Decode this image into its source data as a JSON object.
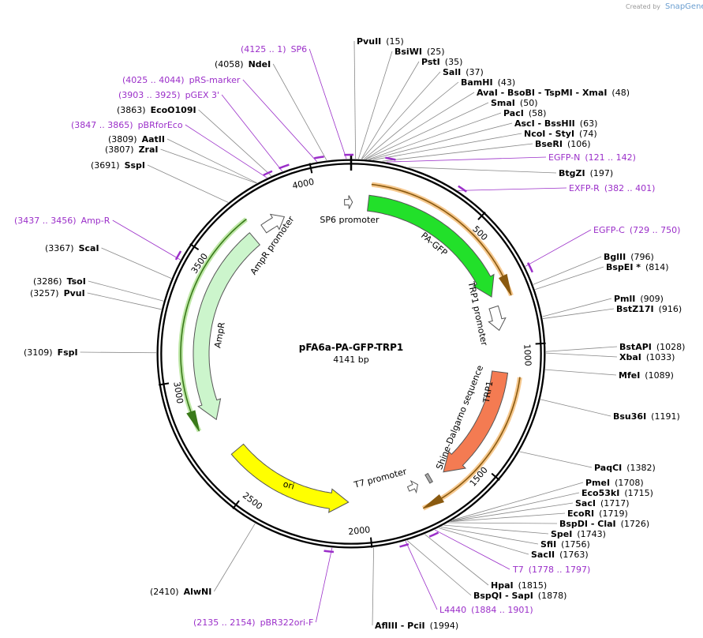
{
  "watermark": {
    "prefix": "Created by",
    "brand": "SnapGene"
  },
  "map": {
    "name": "pFA6a-PA-GFP-TRP1",
    "length": "4141 bp"
  },
  "enzymes": [
    {
      "name": "PvuII",
      "site": "(15)"
    },
    {
      "name": "BsiWI",
      "site": "(25)"
    },
    {
      "name": "PstI",
      "site": "(35)"
    },
    {
      "name": "SalI",
      "site": "(37)"
    },
    {
      "name": "BamHI",
      "site": "(43)"
    },
    {
      "name": "AvaI - BsoBI - TspMI - XmaI",
      "site": "(48)"
    },
    {
      "name": "SmaI",
      "site": "(50)"
    },
    {
      "name": "PacI",
      "site": "(58)"
    },
    {
      "name": "AscI - BssHII",
      "site": "(63)"
    },
    {
      "name": "NcoI - StyI",
      "site": "(74)"
    },
    {
      "name": "BseRI",
      "site": "(106)"
    },
    {
      "name": "BtgZI",
      "site": "(197)"
    },
    {
      "name": "BglII",
      "site": "(796)"
    },
    {
      "name": "BspEI *",
      "site": "(814)"
    },
    {
      "name": "PmlI",
      "site": "(909)"
    },
    {
      "name": "BstZ17I",
      "site": "(916)"
    },
    {
      "name": "BstAPI",
      "site": "(1028)"
    },
    {
      "name": "XbaI",
      "site": "(1033)"
    },
    {
      "name": "MfeI",
      "site": "(1089)"
    },
    {
      "name": "Bsu36I",
      "site": "(1191)"
    },
    {
      "name": "PaqCI",
      "site": "(1382)"
    },
    {
      "name": "PmeI",
      "site": "(1708)"
    },
    {
      "name": "Eco53kI",
      "site": "(1715)"
    },
    {
      "name": "SacI",
      "site": "(1717)"
    },
    {
      "name": "EcoRI",
      "site": "(1719)"
    },
    {
      "name": "BspDI - ClaI",
      "site": "(1726)"
    },
    {
      "name": "SpeI",
      "site": "(1743)"
    },
    {
      "name": "SfiI",
      "site": "(1756)"
    },
    {
      "name": "SacII",
      "site": "(1763)"
    },
    {
      "name": "HpaI",
      "site": "(1815)"
    },
    {
      "name": "BspQI - SapI",
      "site": "(1878)"
    },
    {
      "name": "AflIII - PciI",
      "site": "(1994)"
    },
    {
      "name": "AlwNI",
      "site": "(2410)"
    },
    {
      "name": "FspI",
      "site": "(3109)"
    },
    {
      "name": "PvuI",
      "site": "(3257)"
    },
    {
      "name": "TsoI",
      "site": "(3286)"
    },
    {
      "name": "ScaI",
      "site": "(3367)"
    },
    {
      "name": "SspI",
      "site": "(3691)"
    },
    {
      "name": "ZraI",
      "site": "(3807)"
    },
    {
      "name": "AatII",
      "site": "(3809)"
    },
    {
      "name": "EcoO109I",
      "site": "(3863)"
    },
    {
      "name": "NdeI",
      "site": "(4058)"
    }
  ],
  "primers": [
    {
      "name": "SP6",
      "range": "(4125 .. 1)"
    },
    {
      "name": "pRS-marker",
      "range": "(4025 .. 4044)"
    },
    {
      "name": "pGEX 3'",
      "range": "(3903 .. 3925)"
    },
    {
      "name": "pBRforEco",
      "range": "(3847 .. 3865)"
    },
    {
      "name": "EGFP-N",
      "range": "(121 .. 142)"
    },
    {
      "name": "EXFP-R",
      "range": "(382 .. 401)"
    },
    {
      "name": "EGFP-C",
      "range": "(729 .. 750)"
    },
    {
      "name": "Amp-R",
      "range": "(3437 .. 3456)"
    },
    {
      "name": "T7",
      "range": "(1778 .. 1797)"
    },
    {
      "name": "L4440",
      "range": "(1884 .. 1901)"
    },
    {
      "name": "pBR322ori-F",
      "range": "(2135 .. 2154)"
    }
  ],
  "features": [
    "SP6 promoter",
    "PA-GFP",
    "TRP1 promoter",
    "TRP1",
    "Shine-Dalgarno sequence",
    "T7 promoter",
    "ori",
    "AmpR",
    "AmpR promoter"
  ],
  "ticks": [
    500,
    1000,
    1500,
    2000,
    2500,
    3000,
    3500,
    4000
  ]
}
